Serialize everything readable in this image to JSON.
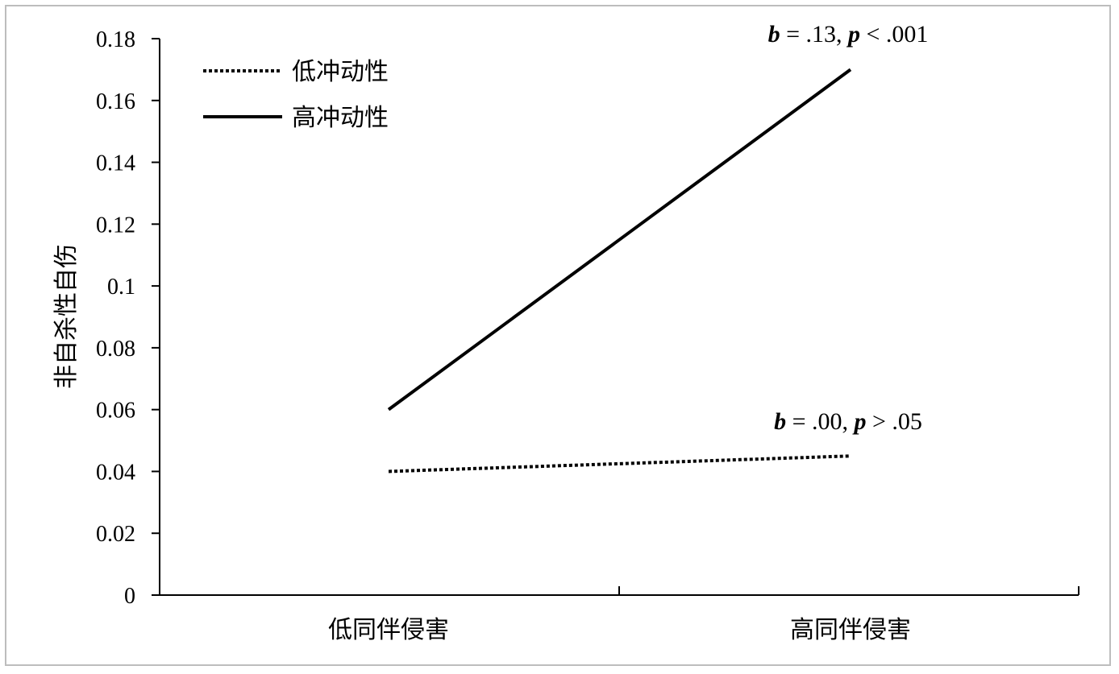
{
  "chart_data": {
    "type": "line",
    "categories": [
      "低同伴侵害",
      "高同伴侵害"
    ],
    "ylabel": "非自杀性自伤",
    "xlabel": "",
    "ylim": [
      0,
      0.18
    ],
    "yticks": [
      "0",
      "0.02",
      "0.04",
      "0.06",
      "0.08",
      "0.1",
      "0.12",
      "0.14",
      "0.16",
      "0.18"
    ],
    "grid": false,
    "legend_position": "top-left",
    "series": [
      {
        "name": "低冲动性",
        "style": "dotted",
        "values": [
          0.04,
          0.045
        ],
        "annotation": {
          "b_symbol": "b",
          "b_text": " = .00, ",
          "p_symbol": "p",
          "p_text": " > .05"
        }
      },
      {
        "name": "高冲动性",
        "style": "solid",
        "values": [
          0.06,
          0.17
        ],
        "annotation": {
          "b_symbol": "b",
          "b_text": " = .13, ",
          "p_symbol": "p",
          "p_text": " < .001"
        }
      }
    ],
    "colors": {
      "line": "#000000",
      "frame": "#bdbdbd"
    }
  }
}
